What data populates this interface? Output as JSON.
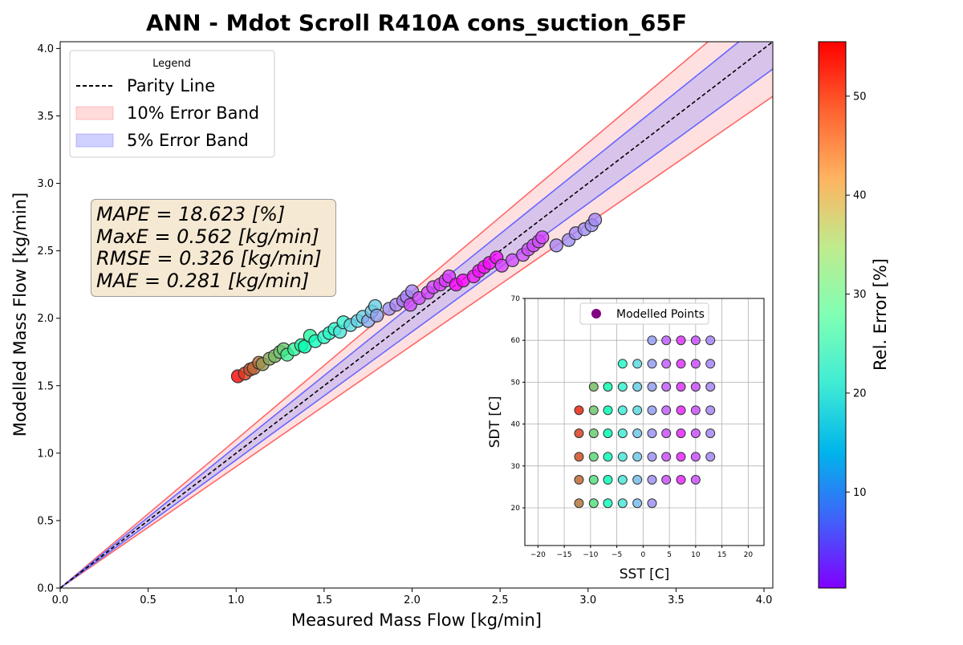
{
  "chart_data": [
    {
      "type": "scatter",
      "title": "ANN - Mdot Scroll R410A cons_suction_65F",
      "xlabel": "Measured Mass Flow [kg/min]",
      "ylabel": "Modelled Mass Flow [kg/min]",
      "xlim": [
        0,
        4.05
      ],
      "ylim": [
        0,
        4.05
      ],
      "x_ticks": [
        "0.0",
        "0.5",
        "1.0",
        "1.5",
        "2.0",
        "2.5",
        "3.0",
        "3.5",
        "4.0"
      ],
      "y_ticks": [
        "0.0",
        "0.5",
        "1.0",
        "1.5",
        "2.0",
        "2.5",
        "3.0",
        "3.5",
        "4.0"
      ],
      "grid": false,
      "legend": {
        "title": "Legend",
        "placement": "top-left",
        "entries": [
          "Parity Line",
          "10% Error Band",
          "5% Error Band"
        ]
      },
      "parity_line_color": "#000000",
      "band_10_color": "#ff6666",
      "band_5_color": "#6666ff",
      "stats": [
        "MAPE = 18.623 [%]",
        "MaxE = 0.562 [kg/min]",
        "RMSE = 0.326 [kg/min]",
        "MAE = 0.281 [kg/min]"
      ],
      "colorbar": {
        "label": "Rel. Error [%]",
        "range": [
          0.3,
          55.5
        ],
        "ticks": [
          "10",
          "20",
          "30",
          "40",
          "50"
        ],
        "colormap": "rainbow"
      },
      "points": [
        {
          "x": 1.01,
          "y": 1.57
        },
        {
          "x": 1.05,
          "y": 1.59
        },
        {
          "x": 1.08,
          "y": 1.62
        },
        {
          "x": 1.1,
          "y": 1.63
        },
        {
          "x": 1.13,
          "y": 1.67
        },
        {
          "x": 1.15,
          "y": 1.66
        },
        {
          "x": 1.19,
          "y": 1.7
        },
        {
          "x": 1.22,
          "y": 1.72
        },
        {
          "x": 1.25,
          "y": 1.75
        },
        {
          "x": 1.27,
          "y": 1.77
        },
        {
          "x": 1.29,
          "y": 1.73
        },
        {
          "x": 1.33,
          "y": 1.77
        },
        {
          "x": 1.37,
          "y": 1.8
        },
        {
          "x": 1.39,
          "y": 1.79
        },
        {
          "x": 1.42,
          "y": 1.87
        },
        {
          "x": 1.45,
          "y": 1.83
        },
        {
          "x": 1.5,
          "y": 1.86
        },
        {
          "x": 1.53,
          "y": 1.89
        },
        {
          "x": 1.56,
          "y": 1.92
        },
        {
          "x": 1.59,
          "y": 1.9
        },
        {
          "x": 1.61,
          "y": 1.97
        },
        {
          "x": 1.65,
          "y": 1.95
        },
        {
          "x": 1.69,
          "y": 1.98
        },
        {
          "x": 1.72,
          "y": 2.01
        },
        {
          "x": 1.75,
          "y": 1.98
        },
        {
          "x": 1.77,
          "y": 2.05
        },
        {
          "x": 1.79,
          "y": 2.09
        },
        {
          "x": 1.8,
          "y": 2.02
        },
        {
          "x": 1.87,
          "y": 2.07
        },
        {
          "x": 1.91,
          "y": 2.1
        },
        {
          "x": 1.95,
          "y": 2.13
        },
        {
          "x": 1.97,
          "y": 2.16
        },
        {
          "x": 1.99,
          "y": 2.1
        },
        {
          "x": 2.0,
          "y": 2.2
        },
        {
          "x": 2.04,
          "y": 2.15
        },
        {
          "x": 2.09,
          "y": 2.19
        },
        {
          "x": 2.12,
          "y": 2.23
        },
        {
          "x": 2.16,
          "y": 2.25
        },
        {
          "x": 2.19,
          "y": 2.28
        },
        {
          "x": 2.21,
          "y": 2.31
        },
        {
          "x": 2.25,
          "y": 2.25
        },
        {
          "x": 2.29,
          "y": 2.28
        },
        {
          "x": 2.35,
          "y": 2.31
        },
        {
          "x": 2.38,
          "y": 2.35
        },
        {
          "x": 2.41,
          "y": 2.38
        },
        {
          "x": 2.44,
          "y": 2.41
        },
        {
          "x": 2.48,
          "y": 2.45
        },
        {
          "x": 2.51,
          "y": 2.39
        },
        {
          "x": 2.57,
          "y": 2.43
        },
        {
          "x": 2.63,
          "y": 2.47
        },
        {
          "x": 2.66,
          "y": 2.51
        },
        {
          "x": 2.69,
          "y": 2.54
        },
        {
          "x": 2.72,
          "y": 2.57
        },
        {
          "x": 2.74,
          "y": 2.6
        },
        {
          "x": 2.82,
          "y": 2.54
        },
        {
          "x": 2.89,
          "y": 2.58
        },
        {
          "x": 2.93,
          "y": 2.63
        },
        {
          "x": 2.98,
          "y": 2.66
        },
        {
          "x": 3.02,
          "y": 2.69
        },
        {
          "x": 3.04,
          "y": 2.73
        }
      ]
    },
    {
      "type": "scatter",
      "title": "",
      "xlabel": "SST [C]",
      "ylabel": "SDT [C]",
      "xlim": [
        -22.5,
        23
      ],
      "ylim": [
        11,
        70
      ],
      "x_ticks": [
        "−20",
        "−15",
        "−10",
        "−5",
        "0",
        "5",
        "10",
        "15",
        "20"
      ],
      "y_ticks": [
        "20",
        "30",
        "40",
        "50",
        "60",
        "70"
      ],
      "grid": true,
      "legend": {
        "placement": "top-center",
        "entries": [
          "Modelled Points"
        ]
      },
      "legend_marker_color": "#800080",
      "points": [
        {
          "x": -12.2,
          "y": 43.3,
          "err": 53
        },
        {
          "x": -9.4,
          "y": 43.3,
          "err": 40
        },
        {
          "x": -6.7,
          "y": 43.3,
          "err": 28
        },
        {
          "x": -3.9,
          "y": 43.3,
          "err": 21
        },
        {
          "x": -1.1,
          "y": 43.3,
          "err": 18
        },
        {
          "x": 1.7,
          "y": 43.3,
          "err": 12
        },
        {
          "x": 4.4,
          "y": 43.3,
          "err": 7
        },
        {
          "x": 7.2,
          "y": 43.3,
          "err": 3
        },
        {
          "x": 10.0,
          "y": 43.3,
          "err": 6
        },
        {
          "x": 12.8,
          "y": 43.3,
          "err": 10
        },
        {
          "x": -12.2,
          "y": 37.8,
          "err": 51
        },
        {
          "x": -9.4,
          "y": 37.8,
          "err": 39
        },
        {
          "x": -6.7,
          "y": 37.8,
          "err": 28
        },
        {
          "x": -3.9,
          "y": 37.8,
          "err": 21
        },
        {
          "x": -1.1,
          "y": 37.8,
          "err": 16
        },
        {
          "x": 1.7,
          "y": 37.8,
          "err": 11
        },
        {
          "x": 4.4,
          "y": 37.8,
          "err": 6
        },
        {
          "x": 7.2,
          "y": 37.8,
          "err": 3
        },
        {
          "x": 10.0,
          "y": 37.8,
          "err": 6
        },
        {
          "x": 12.8,
          "y": 37.8,
          "err": 10
        },
        {
          "x": -12.2,
          "y": 32.2,
          "err": 50
        },
        {
          "x": -9.4,
          "y": 32.2,
          "err": 38
        },
        {
          "x": -6.7,
          "y": 32.2,
          "err": 27
        },
        {
          "x": -3.9,
          "y": 32.2,
          "err": 20
        },
        {
          "x": -1.1,
          "y": 32.2,
          "err": 16
        },
        {
          "x": 1.7,
          "y": 32.2,
          "err": 11
        },
        {
          "x": 4.4,
          "y": 32.2,
          "err": 6
        },
        {
          "x": 7.2,
          "y": 32.2,
          "err": 3
        },
        {
          "x": 10.0,
          "y": 32.2,
          "err": 6
        },
        {
          "x": 12.8,
          "y": 32.2,
          "err": 10
        },
        {
          "x": -12.2,
          "y": 26.7,
          "err": 48
        },
        {
          "x": -9.4,
          "y": 26.7,
          "err": 37
        },
        {
          "x": -6.7,
          "y": 26.7,
          "err": 27
        },
        {
          "x": -3.9,
          "y": 26.7,
          "err": 20
        },
        {
          "x": -1.1,
          "y": 26.7,
          "err": 15
        },
        {
          "x": 1.7,
          "y": 26.7,
          "err": 11
        },
        {
          "x": 4.4,
          "y": 26.7,
          "err": 6
        },
        {
          "x": 7.2,
          "y": 26.7,
          "err": 3
        },
        {
          "x": 10.0,
          "y": 26.7,
          "err": 6
        },
        {
          "x": -12.2,
          "y": 21.1,
          "err": 47
        },
        {
          "x": -9.4,
          "y": 21.1,
          "err": 37
        },
        {
          "x": -6.7,
          "y": 21.1,
          "err": 26
        },
        {
          "x": -3.9,
          "y": 21.1,
          "err": 20
        },
        {
          "x": -1.1,
          "y": 21.1,
          "err": 15
        },
        {
          "x": 1.7,
          "y": 21.1,
          "err": 11
        },
        {
          "x": -9.4,
          "y": 48.9,
          "err": 41
        },
        {
          "x": -6.7,
          "y": 48.9,
          "err": 29
        },
        {
          "x": -3.9,
          "y": 48.9,
          "err": 22
        },
        {
          "x": -1.1,
          "y": 48.9,
          "err": 17
        },
        {
          "x": 1.7,
          "y": 48.9,
          "err": 12
        },
        {
          "x": 4.4,
          "y": 48.9,
          "err": 7
        },
        {
          "x": 7.2,
          "y": 48.9,
          "err": 4
        },
        {
          "x": 10.0,
          "y": 48.9,
          "err": 6
        },
        {
          "x": 12.8,
          "y": 48.9,
          "err": 10
        },
        {
          "x": -3.9,
          "y": 54.4,
          "err": 24
        },
        {
          "x": -1.1,
          "y": 54.4,
          "err": 18
        },
        {
          "x": 1.7,
          "y": 54.4,
          "err": 12
        },
        {
          "x": 4.4,
          "y": 54.4,
          "err": 7
        },
        {
          "x": 7.2,
          "y": 54.4,
          "err": 4
        },
        {
          "x": 10.0,
          "y": 54.4,
          "err": 6
        },
        {
          "x": 12.8,
          "y": 54.4,
          "err": 10
        },
        {
          "x": 1.7,
          "y": 60.0,
          "err": 12
        },
        {
          "x": 4.4,
          "y": 60.0,
          "err": 7
        },
        {
          "x": 7.2,
          "y": 60.0,
          "err": 4
        },
        {
          "x": 10.0,
          "y": 60.0,
          "err": 6
        },
        {
          "x": 12.8,
          "y": 60.0,
          "err": 10
        }
      ]
    }
  ]
}
